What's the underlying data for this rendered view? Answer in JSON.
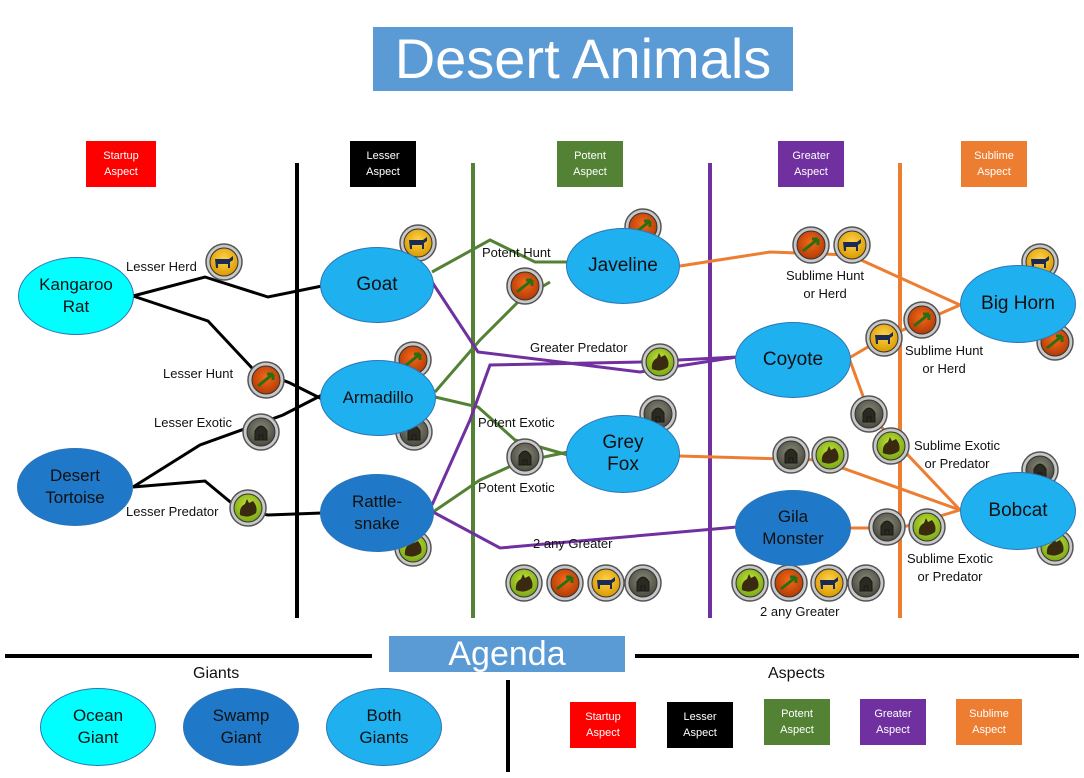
{
  "title": "Desert Animals",
  "agenda_title": "Agenda",
  "colors": {
    "startup": "#ff0000",
    "lesser": "#000000",
    "potent": "#548235",
    "greater": "#7030a0",
    "sublime": "#ed7d31",
    "ocean_giant": "#00ffff",
    "swamp_giant": "#1f78c8",
    "both_giants": "#1fb0f0",
    "title_bg": "#5b9bd5"
  },
  "aspect_headers": [
    {
      "line1": "Startup",
      "line2": "Aspect",
      "color": "#ff0000"
    },
    {
      "line1": "Lesser",
      "line2": "Aspect",
      "color": "#000000"
    },
    {
      "line1": "Potent",
      "line2": "Aspect",
      "color": "#548235"
    },
    {
      "line1": "Greater",
      "line2": "Aspect",
      "color": "#7030a0"
    },
    {
      "line1": "Sublime",
      "line2": "Aspect",
      "color": "#ed7d31"
    }
  ],
  "nodes": {
    "kangaroo_rat": "Kangaroo\nRat",
    "desert_tortoise": "Desert\nTortoise",
    "goat": "Goat",
    "armadillo": "Armadillo",
    "rattlesnake": "Rattle-\nsnake",
    "javeline": "Javeline",
    "grey_fox": "Grey\nFox",
    "coyote": "Coyote",
    "gila_monster": "Gila\nMonster",
    "big_horn": "Big Horn",
    "bobcat": "Bobcat"
  },
  "edge_labels": {
    "lesser_herd": "Lesser Herd",
    "lesser_hunt": "Lesser Hunt",
    "lesser_exotic": "Lesser Exotic",
    "lesser_predator": "Lesser Predator",
    "potent_hunt": "Potent Hunt",
    "greater_predator": "Greater Predator",
    "potent_exotic_1": "Potent Exotic",
    "potent_exotic_2": "Potent Exotic",
    "any_greater_1": "2 any Greater",
    "any_greater_2": "2 any Greater",
    "sublime_hunt_herd_1": "Sublime Hunt\nor Herd",
    "sublime_hunt_herd_2": "Sublime Hunt\nor Herd",
    "sublime_exotic_pred_1": "Sublime Exotic\nor Predator",
    "sublime_exotic_pred_2": "Sublime Exotic\nor Predator"
  },
  "giants_label": "Giants",
  "aspects_label": "Aspects",
  "giants": [
    {
      "text": "Ocean\nGiant",
      "color": "#00ffff"
    },
    {
      "text": "Swamp\nGiant",
      "color": "#1f78c8"
    },
    {
      "text": "Both\nGiants",
      "color": "#1fb0f0"
    }
  ],
  "icons": [
    "herd-icon",
    "hunt-icon",
    "exotic-icon",
    "predator-icon"
  ]
}
